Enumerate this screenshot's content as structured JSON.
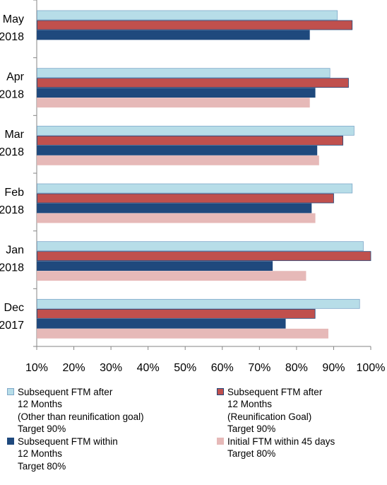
{
  "chart_data": {
    "type": "bar",
    "orientation": "horizontal",
    "categories": [
      [
        "May",
        "2018"
      ],
      [
        "Apr",
        "2018"
      ],
      [
        "Mar",
        "2018"
      ],
      [
        "Feb",
        "2018"
      ],
      [
        "Jan",
        "2018"
      ],
      [
        "Dec",
        "2017"
      ]
    ],
    "series": [
      {
        "name": "Subsequent FTM after 12 Months (Other than reunification goal) Target 90%",
        "legend_lines": [
          "Subsequent FTM after",
          "12 Months",
          "(Other than reunification goal)",
          "Target 90%"
        ],
        "color": "#b7dde8",
        "border": "#7fa8c9",
        "values": [
          91,
          89,
          95.5,
          95,
          98,
          97
        ]
      },
      {
        "name": "Subsequent FTM after 12 Months (Reunification Goal) Target 90%",
        "legend_lines": [
          "Subsequent FTM after",
          "12 Months",
          "(Reunification Goal)",
          "Target 90%"
        ],
        "color": "#c0504d",
        "border": "#1f497d",
        "values": [
          95,
          94,
          92.5,
          90,
          100,
          85
        ]
      },
      {
        "name": "Subsequent FTM within 12 Months Target 80%",
        "legend_lines": [
          "Subsequent FTM within",
          "12 Months",
          "Target 80%"
        ],
        "color": "#1f497d",
        "border": "#1f497d",
        "values": [
          83.5,
          85,
          85.5,
          84,
          73.5,
          77
        ]
      },
      {
        "name": "Initial FTM within 45 days Target 80%",
        "legend_lines": [
          "Initial FTM within 45 days",
          "Target 80%"
        ],
        "color": "#e6b9b8",
        "border": "#e6b9b8",
        "values": [
          null,
          83.5,
          86,
          85,
          82.5,
          88.5
        ]
      }
    ],
    "x_ticks": [
      "10%",
      "20%",
      "30%",
      "40%",
      "50%",
      "60%",
      "70%",
      "80%",
      "90%",
      "100%"
    ],
    "xlim": [
      10,
      100
    ],
    "title": "",
    "xlabel": "",
    "ylabel": "",
    "grid": false,
    "legend_position": "bottom"
  }
}
